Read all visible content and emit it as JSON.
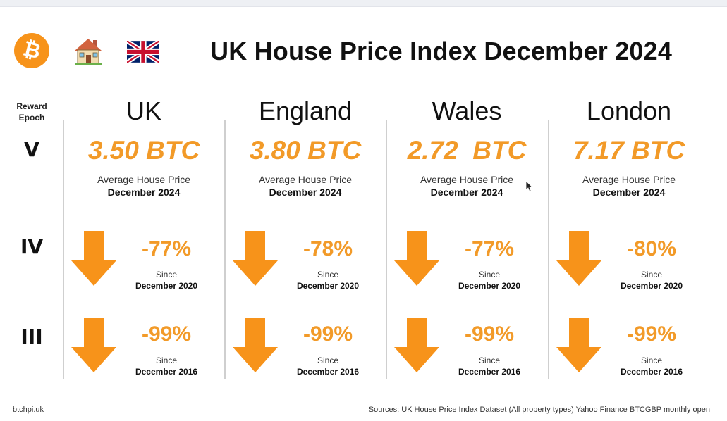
{
  "header": {
    "title": "UK House Price Index December 2024",
    "icons": [
      "bitcoin-logo-icon",
      "house-icon",
      "uk-flag-icon"
    ],
    "bitcoin_symbol": "₿"
  },
  "epoch_header": {
    "line1": "Reward",
    "line2": "Epoch"
  },
  "epochs": [
    "V",
    "IV",
    "III"
  ],
  "colors": {
    "accent": "#f29a28",
    "arrow": "#f7931a",
    "text": "#111111"
  },
  "price_caption": {
    "label": "Average House Price",
    "date": "December 2024"
  },
  "since_label": "Since",
  "regions": [
    {
      "name": "UK",
      "price": "3.50 BTC",
      "changes": [
        {
          "pct": "-77%",
          "since": "December 2020"
        },
        {
          "pct": "-99%",
          "since": "December 2016"
        }
      ]
    },
    {
      "name": "England",
      "price": "3.80 BTC",
      "changes": [
        {
          "pct": "-78%",
          "since": "December 2020"
        },
        {
          "pct": "-99%",
          "since": "December 2016"
        }
      ]
    },
    {
      "name": "Wales",
      "price": "2.72  BTC",
      "changes": [
        {
          "pct": "-77%",
          "since": "December 2020"
        },
        {
          "pct": "-99%",
          "since": "December 2016"
        }
      ]
    },
    {
      "name": "London",
      "price": "7.17 BTC",
      "changes": [
        {
          "pct": "-80%",
          "since": "December 2020"
        },
        {
          "pct": "-99%",
          "since": "December 2016"
        }
      ]
    }
  ],
  "footer": {
    "site": "btchpi.uk",
    "sources": "Sources: UK House Price Index Dataset (All property types) Yahoo Finance BTCGBP monthly open"
  }
}
